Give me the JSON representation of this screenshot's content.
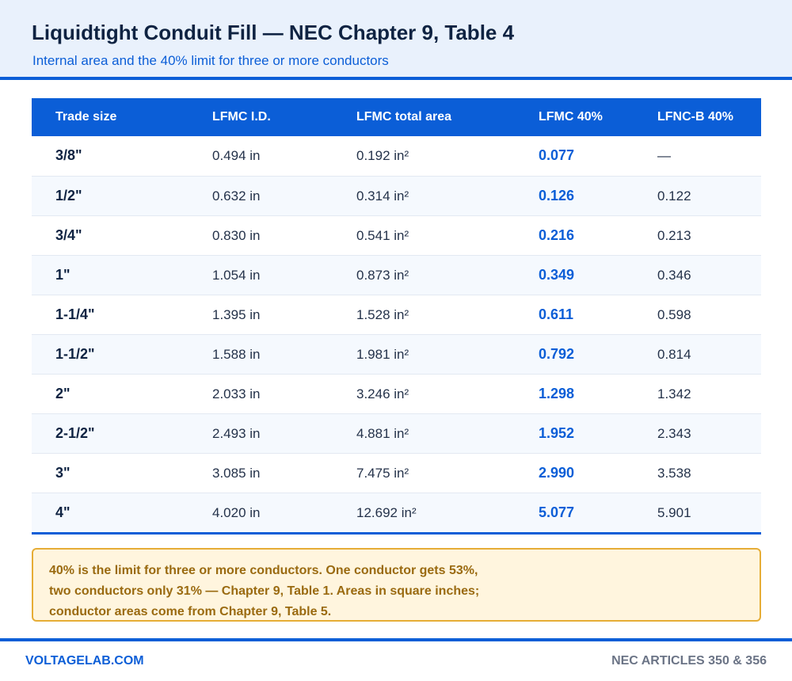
{
  "header": {
    "title": "Liquidtight Conduit Fill — NEC Chapter 9, Table 4",
    "subtitle": "Internal area and the 40% limit for three or more conductors"
  },
  "table": {
    "columns": [
      "Trade size",
      "LFMC I.D.",
      "LFMC total area",
      "LFMC 40%",
      "LFNC-B 40%"
    ],
    "rows": [
      {
        "size": "3/8\"",
        "id": "0.494 in",
        "area": "0.192 in²",
        "lfmc40": "0.077",
        "lfncb40": "—"
      },
      {
        "size": "1/2\"",
        "id": "0.632 in",
        "area": "0.314 in²",
        "lfmc40": "0.126",
        "lfncb40": "0.122"
      },
      {
        "size": "3/4\"",
        "id": "0.830 in",
        "area": "0.541 in²",
        "lfmc40": "0.216",
        "lfncb40": "0.213"
      },
      {
        "size": "1\"",
        "id": "1.054 in",
        "area": "0.873 in²",
        "lfmc40": "0.349",
        "lfncb40": "0.346"
      },
      {
        "size": "1-1/4\"",
        "id": "1.395 in",
        "area": "1.528 in²",
        "lfmc40": "0.611",
        "lfncb40": "0.598"
      },
      {
        "size": "1-1/2\"",
        "id": "1.588 in",
        "area": "1.981 in²",
        "lfmc40": "0.792",
        "lfncb40": "0.814"
      },
      {
        "size": "2\"",
        "id": "2.033 in",
        "area": "3.246 in²",
        "lfmc40": "1.298",
        "lfncb40": "1.342"
      },
      {
        "size": "2-1/2\"",
        "id": "2.493 in",
        "area": "4.881 in²",
        "lfmc40": "1.952",
        "lfncb40": "2.343"
      },
      {
        "size": "3\"",
        "id": "3.085 in",
        "area": "7.475 in²",
        "lfmc40": "2.990",
        "lfncb40": "3.538"
      },
      {
        "size": "4\"",
        "id": "4.020 in",
        "area": "12.692 in²",
        "lfmc40": "5.077",
        "lfncb40": "5.901"
      }
    ]
  },
  "note": {
    "lines": [
      "40% is the limit for three or more conductors. One conductor gets 53%,",
      "two conductors only 31% — Chapter 9, Table 1. Areas in square inches;",
      "conductor areas come from Chapter 9, Table 5."
    ]
  },
  "footer": {
    "left": "VOLTAGELAB.COM",
    "right": "NEC ARTICLES 350 & 356"
  },
  "colors": {
    "accent": "#0b5ed7",
    "header_bg": "#e9f1fc",
    "note_bg": "#fff5de",
    "note_border": "#e6ad36",
    "note_text": "#9a6a10"
  }
}
